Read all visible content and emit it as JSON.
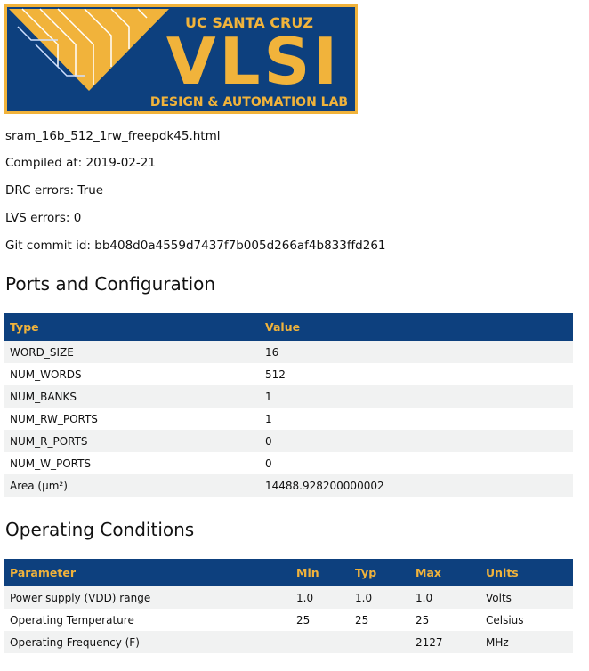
{
  "logo": {
    "top_text": "UC SANTA CRUZ",
    "main_text": "VLSI",
    "bottom_text": "DESIGN & AUTOMATION LAB",
    "colors": {
      "blue": "#0d407e",
      "gold": "#f1b33b"
    }
  },
  "info": {
    "filename": "sram_16b_512_1rw_freepdk45.html",
    "compiled": "Compiled at: 2019-02-21",
    "drc": "DRC errors: True",
    "lvs": "LVS errors: 0",
    "git": "Git commit id: bb408d0a4559d7437f7b005d266af4b833ffd261"
  },
  "ports": {
    "title": "Ports and Configuration",
    "headers": [
      "Type",
      "Value"
    ],
    "rows": [
      [
        "WORD_SIZE",
        "16"
      ],
      [
        "NUM_WORDS",
        "512"
      ],
      [
        "NUM_BANKS",
        "1"
      ],
      [
        "NUM_RW_PORTS",
        "1"
      ],
      [
        "NUM_R_PORTS",
        "0"
      ],
      [
        "NUM_W_PORTS",
        "0"
      ],
      [
        "Area (µm²)",
        "14488.928200000002"
      ]
    ]
  },
  "conditions": {
    "title": "Operating Conditions",
    "headers": [
      "Parameter",
      "Min",
      "Typ",
      "Max",
      "Units"
    ],
    "rows": [
      [
        "Power supply (VDD) range",
        "1.0",
        "1.0",
        "1.0",
        "Volts"
      ],
      [
        "Operating Temperature",
        "25",
        "25",
        "25",
        "Celsius"
      ],
      [
        "Operating Frequency (F)",
        "",
        "",
        "2127",
        "MHz"
      ]
    ]
  }
}
